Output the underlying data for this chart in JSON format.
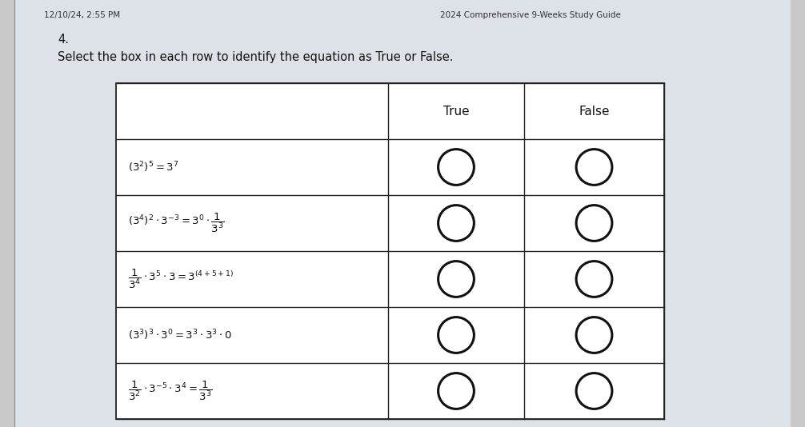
{
  "title_left": "12/10/24, 2:55 PM",
  "title_right": "2024 Comprehensive 9-Weeks Study Guide",
  "question_number": "4.",
  "instruction": "Select the box in each row to identify the equation as True or False.",
  "col_headers": [
    "True",
    "False"
  ],
  "equations_latex": [
    "$(3^2)^5 = 3^7$",
    "$(3^4)^2 \\cdot 3^{-3} = 3^0 \\cdot \\dfrac{1}{3^3}$",
    "$\\dfrac{1}{3^4} \\cdot 3^5 \\cdot 3 = 3^{(4+5+1)}$",
    "$(3^3)^3 \\cdot 3^0 = 3^3 \\cdot 3^3 \\cdot 0$",
    "$\\dfrac{1}{3^2} \\cdot 3^{-5} \\cdot 3^4 = \\dfrac{1}{3^3}$"
  ],
  "background_color": "#c8c8c8",
  "paper_color": "#dde2e8",
  "table_bg": "#ffffff",
  "border_color": "#222222",
  "text_color": "#111111",
  "circle_color": "#111111",
  "n_rows": 5
}
